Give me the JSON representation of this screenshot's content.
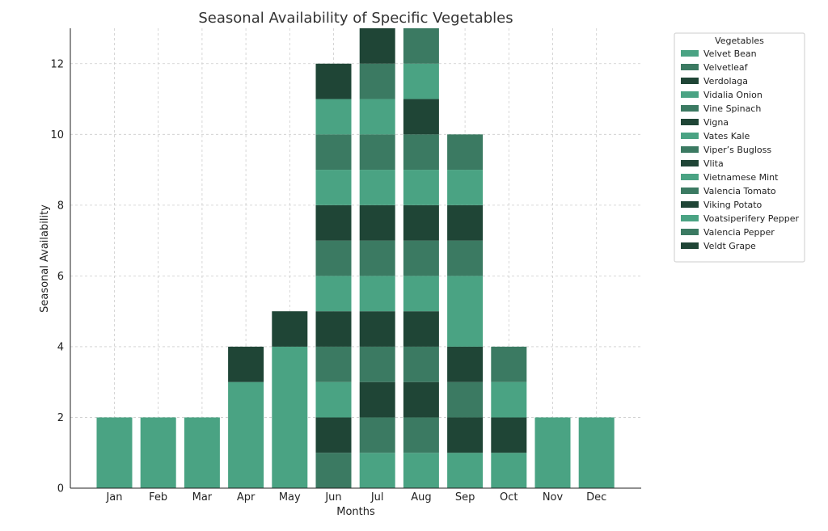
{
  "chart_data": {
    "type": "bar",
    "stacked": true,
    "title": "Seasonal Availability of Specific Vegetables",
    "xlabel": "Months",
    "ylabel": "Seasonal Availability",
    "categories": [
      "Jan",
      "Feb",
      "Mar",
      "Apr",
      "May",
      "Jun",
      "Jul",
      "Aug",
      "Sep",
      "Oct",
      "Nov",
      "Dec"
    ],
    "ylim": [
      0,
      13
    ],
    "yticks": [
      0,
      2,
      4,
      6,
      8,
      10,
      12
    ],
    "grid": true,
    "legend": {
      "title": "Vegetables",
      "placement": "outside-right"
    },
    "series": [
      {
        "name": "Velvet Bean",
        "color": "#4aa383",
        "values": [
          2,
          2,
          2,
          3,
          4,
          0,
          1,
          1,
          1,
          1,
          2,
          2
        ]
      },
      {
        "name": "Velvetleaf",
        "color": "#3b7a62",
        "values": [
          0,
          0,
          0,
          0,
          0,
          1,
          1,
          1,
          0,
          0,
          0,
          0
        ]
      },
      {
        "name": "Verdolaga",
        "color": "#1f4536",
        "values": [
          0,
          0,
          0,
          1,
          1,
          1,
          1,
          1,
          1,
          1,
          0,
          0
        ]
      },
      {
        "name": "Vidalia Onion",
        "color": "#4aa383",
        "values": [
          0,
          0,
          0,
          0,
          0,
          1,
          0,
          0,
          0,
          1,
          0,
          0
        ]
      },
      {
        "name": "Vine Spinach",
        "color": "#3b7a62",
        "values": [
          0,
          0,
          0,
          0,
          0,
          1,
          1,
          1,
          1,
          1,
          0,
          0
        ]
      },
      {
        "name": "Vigna",
        "color": "#1f4536",
        "values": [
          0,
          0,
          0,
          0,
          0,
          1,
          1,
          1,
          1,
          0,
          0,
          0
        ]
      },
      {
        "name": "Vates Kale",
        "color": "#4aa383",
        "values": [
          0,
          0,
          0,
          0,
          0,
          1,
          1,
          1,
          2,
          0,
          0,
          0
        ]
      },
      {
        "name": "Viper’s Bugloss",
        "color": "#3b7a62",
        "values": [
          0,
          0,
          0,
          0,
          0,
          1,
          1,
          1,
          1,
          0,
          0,
          0
        ]
      },
      {
        "name": "Vlita",
        "color": "#1f4536",
        "values": [
          0,
          0,
          0,
          0,
          0,
          1,
          1,
          1,
          1,
          0,
          0,
          0
        ]
      },
      {
        "name": "Vietnamese Mint",
        "color": "#4aa383",
        "values": [
          0,
          0,
          0,
          0,
          0,
          1,
          1,
          1,
          1,
          0,
          0,
          0
        ]
      },
      {
        "name": "Valencia Tomato",
        "color": "#3b7a62",
        "values": [
          0,
          0,
          0,
          0,
          0,
          1,
          1,
          1,
          1,
          0,
          0,
          0
        ]
      },
      {
        "name": "Viking Potato",
        "color": "#1f4536",
        "values": [
          0,
          0,
          0,
          0,
          0,
          0,
          0,
          1,
          0,
          0,
          0,
          0
        ]
      },
      {
        "name": "Voatsiperifery Pepper",
        "color": "#4aa383",
        "values": [
          0,
          0,
          0,
          0,
          0,
          1,
          1,
          1,
          0,
          0,
          0,
          0
        ]
      },
      {
        "name": "Valencia Pepper",
        "color": "#3b7a62",
        "values": [
          0,
          0,
          0,
          0,
          0,
          0,
          1,
          1,
          0,
          0,
          0,
          0
        ]
      },
      {
        "name": "Veldt Grape",
        "color": "#1f4536",
        "values": [
          0,
          0,
          0,
          0,
          0,
          1,
          1,
          0,
          0,
          0,
          0,
          0
        ]
      }
    ]
  }
}
